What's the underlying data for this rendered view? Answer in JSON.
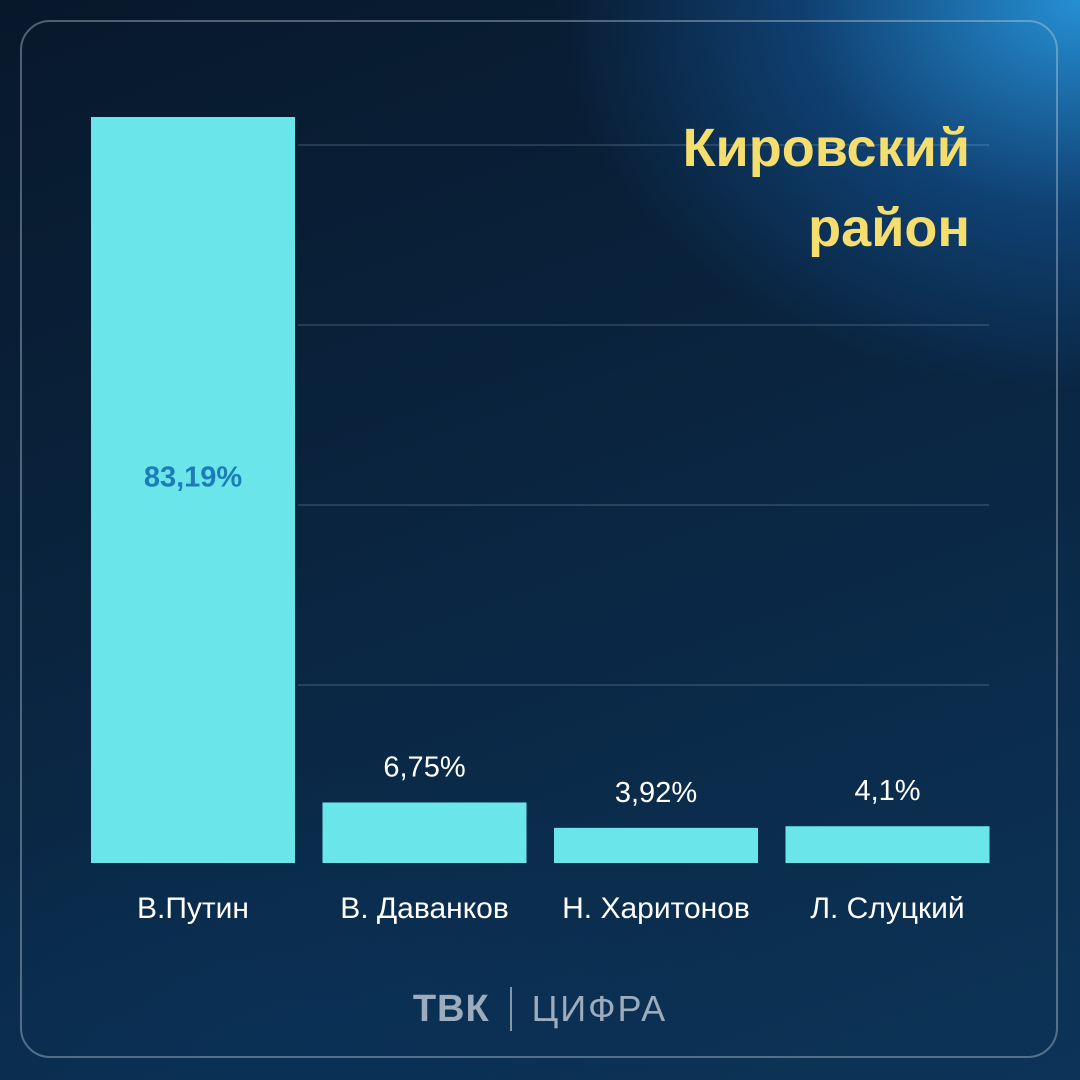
{
  "title_lines": [
    "Кировский",
    "район"
  ],
  "colors": {
    "bar": "#6ae5ea",
    "title": "#f6de6e",
    "label_inside": "#1c7cb8",
    "label_outside": "#ffffff",
    "grid": "rgba(170,200,225,0.35)"
  },
  "chart_data": {
    "type": "bar",
    "title": "Кировский район",
    "categories": [
      "В.Путин",
      "В. Даванков",
      "Н. Харитонов",
      "Л. Слуцкий"
    ],
    "values": [
      83.19,
      6.75,
      3.92,
      4.1
    ],
    "value_labels": [
      "83,19%",
      "6,75%",
      "3,92%",
      "4,1%"
    ],
    "ylim": [
      0,
      83.19
    ],
    "grid": true,
    "xlabel": "",
    "ylabel": ""
  },
  "footer": {
    "brand_primary": "ТВК",
    "brand_secondary": "ЦИФРА"
  }
}
